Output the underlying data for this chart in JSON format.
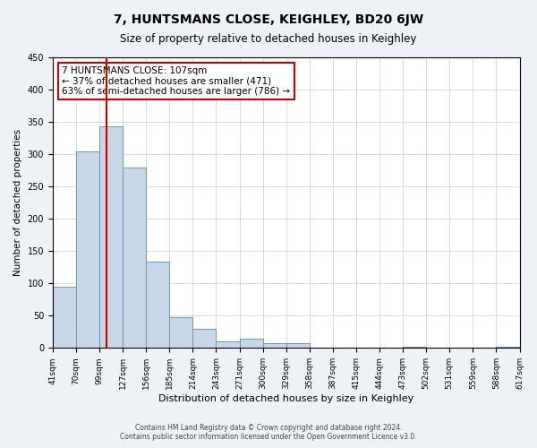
{
  "title": "7, HUNTSMANS CLOSE, KEIGHLEY, BD20 6JW",
  "subtitle": "Size of property relative to detached houses in Keighley",
  "xlabel": "Distribution of detached houses by size in Keighley",
  "ylabel": "Number of detached properties",
  "footer_line1": "Contains HM Land Registry data © Crown copyright and database right 2024.",
  "footer_line2": "Contains public sector information licensed under the Open Government Licence v3.0.",
  "annotation_title": "7 HUNTSMANS CLOSE: 107sqm",
  "annotation_line1": "← 37% of detached houses are smaller (471)",
  "annotation_line2": "63% of semi-detached houses are larger (786) →",
  "bar_color": "#c8d8e8",
  "bar_edge_color": "#6699bb",
  "ref_line_color": "#cc0000",
  "annotation_box_edge_color": "#cc0000",
  "ylim": [
    0,
    450
  ],
  "yticks": [
    0,
    50,
    100,
    150,
    200,
    250,
    300,
    350,
    400,
    450
  ],
  "bin_labels": [
    "41sqm",
    "70sqm",
    "99sqm",
    "127sqm",
    "156sqm",
    "185sqm",
    "214sqm",
    "243sqm",
    "271sqm",
    "300sqm",
    "329sqm",
    "358sqm",
    "387sqm",
    "415sqm",
    "444sqm",
    "473sqm",
    "502sqm",
    "531sqm",
    "559sqm",
    "588sqm",
    "617sqm"
  ],
  "bin_edges": [
    41,
    70,
    99,
    127,
    156,
    185,
    214,
    243,
    271,
    300,
    329,
    358,
    387,
    415,
    444,
    473,
    502,
    531,
    559,
    588,
    617
  ],
  "bar_heights": [
    95,
    305,
    343,
    280,
    133,
    47,
    30,
    10,
    15,
    7,
    8,
    0,
    0,
    0,
    0,
    2,
    0,
    0,
    0,
    2
  ],
  "property_size": 107,
  "background_color": "#eef2f6",
  "plot_background_color": "#ffffff"
}
